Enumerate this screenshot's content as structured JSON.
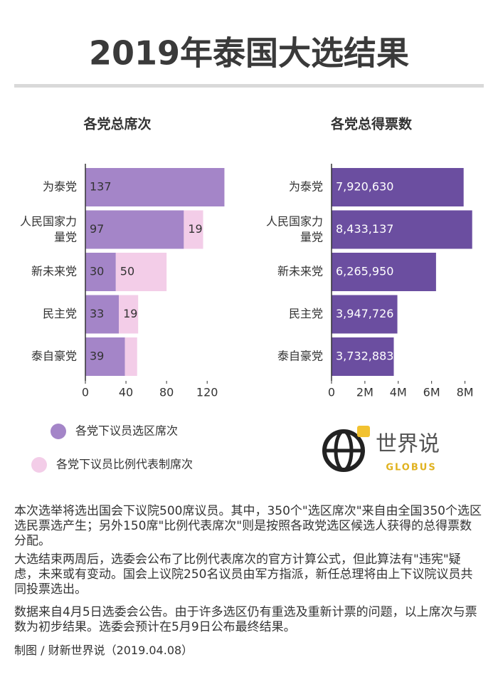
{
  "title": "2019年泰国大选结果",
  "chart_data": [
    {
      "type": "stacked-bar",
      "orientation": "horizontal",
      "title": "各党总席次",
      "categories": [
        "为泰党",
        "人民国家力量党",
        "新未来党",
        "民主党",
        "泰自豪党"
      ],
      "series": [
        {
          "name": "各党下议员选区席次",
          "color": "#a485c8",
          "values": [
            137,
            97,
            30,
            33,
            39
          ]
        },
        {
          "name": "各党下议员比例代表制席次",
          "color": "#f3cde8",
          "values": [
            0,
            19,
            50,
            19,
            12
          ],
          "value_labels": [
            null,
            "19",
            "50",
            "19",
            null
          ]
        }
      ],
      "xlim": [
        0,
        150
      ],
      "xticks": [
        0,
        40,
        80,
        120
      ]
    },
    {
      "type": "bar",
      "orientation": "horizontal",
      "title": "各党总得票数",
      "categories": [
        "为泰党",
        "人民国家力量党",
        "新未来党",
        "民主党",
        "泰自豪党"
      ],
      "series": [
        {
          "name": "总得票数",
          "color": "#6b4ea0",
          "values": [
            7920630,
            8433137,
            6265950,
            3947726,
            3732883
          ],
          "value_labels": [
            "7,920,630",
            "8,433,137",
            "6,265,950",
            "3,947,726",
            "3,732,883"
          ]
        }
      ],
      "xlim": [
        0,
        9000000
      ],
      "xticks": [
        0,
        {
          "value": 2000000,
          "label": "2M"
        },
        {
          "value": 4000000,
          "label": "4M"
        },
        {
          "value": 6000000,
          "label": "6M"
        },
        {
          "value": 8000000,
          "label": "8M"
        }
      ]
    }
  ],
  "logo": {
    "name": "世界说",
    "sub": "GLOBUS"
  },
  "notes": [
    "本次选举将选出国会下议院500席议员。其中，350个\"选区席次\"来自由全国350个选区选民票选产生；另外150席\"比例代表席次\"则是按照各政党选区候选人获得的总得票数分配。",
    "大选结束两周后，选委会公布了比例代表席次的官方计算公式，但此算法有\"违宪\"疑虑，未来或有变动。国会上议院250名议员由军方指派，新任总理将由上下议院议员共同投票选出。",
    "数据来自4月5日选委会公告。由于许多选区仍有重选及重新计票的问题，以上席次与票数为初步结果。选委会预计在5月9日公布最终结果。"
  ],
  "credit": "制图 / 财新世界说（2019.04.08）"
}
